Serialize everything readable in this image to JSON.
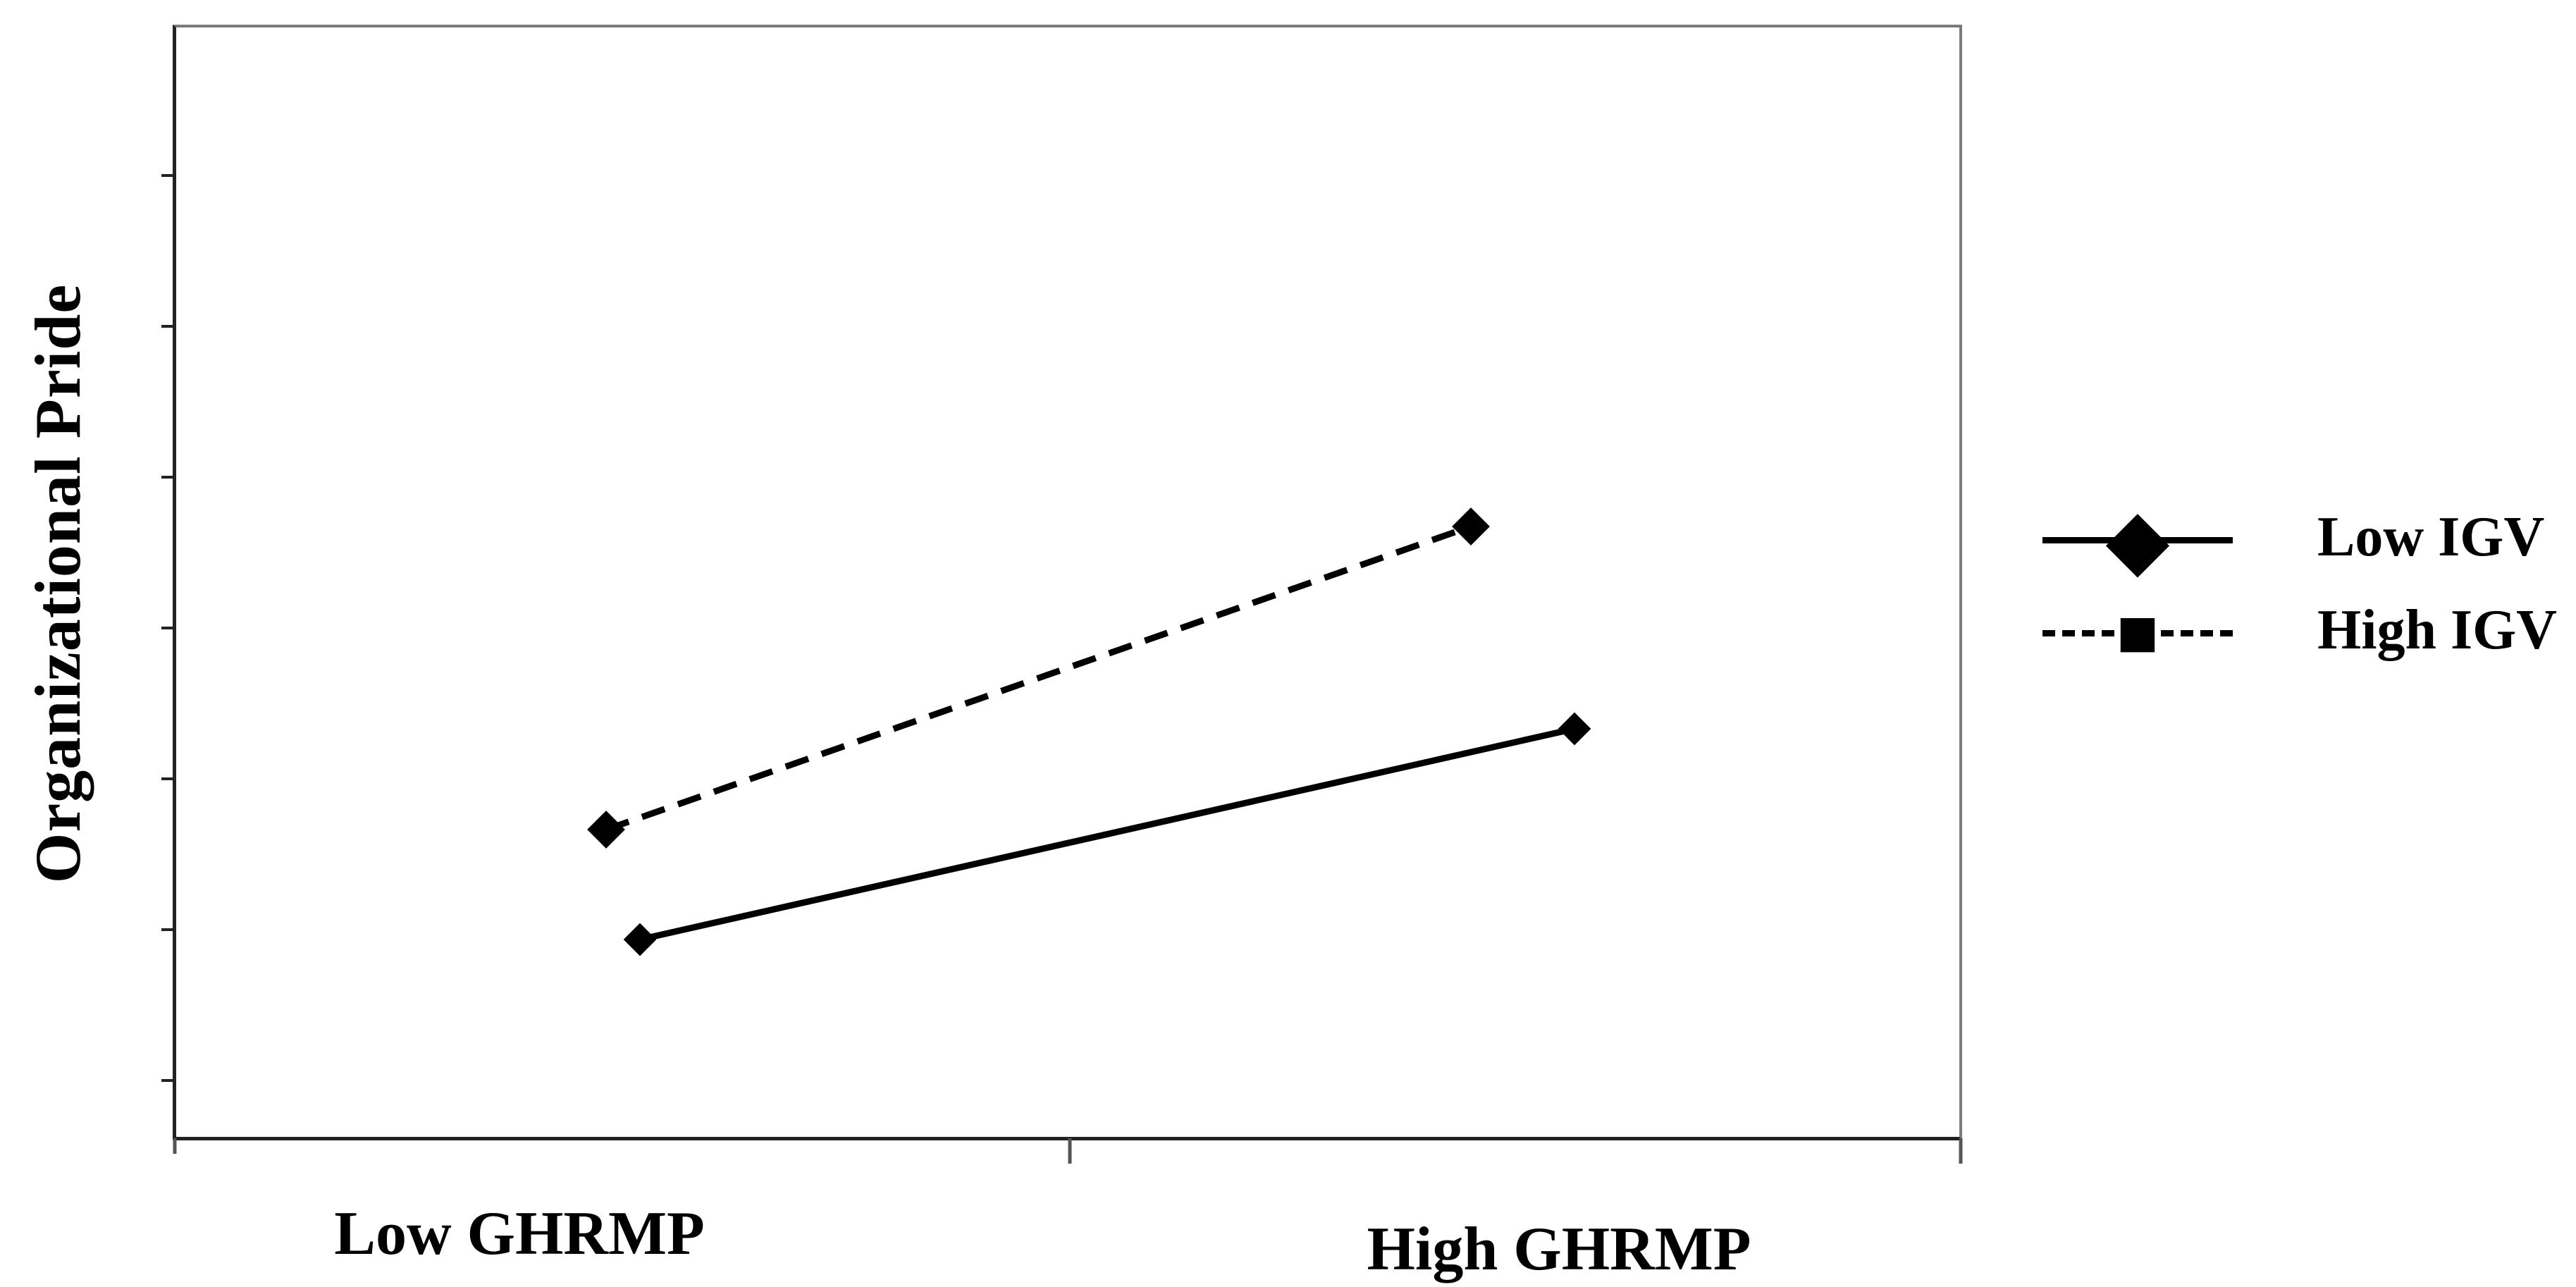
{
  "figure": {
    "kind": "static-interaction-plot",
    "background": "#ffffff",
    "frame_border_color": "#7b7b7b",
    "axis_color": "#222222",
    "line_color": "#000000",
    "text_color": "#000000"
  },
  "icons": {
    "diamond_marker": "◆",
    "square_marker": "■"
  },
  "chart_data": {
    "type": "line",
    "title": "",
    "xlabel": "",
    "ylabel": "Organizational Pride",
    "categories": [
      "Low GHRMP",
      "High GHRMP"
    ],
    "y_axis": {
      "tick_labels_visible": false,
      "unlabeled_minor_tick_count": 7,
      "range_norm": [
        0,
        1
      ]
    },
    "x_axis": {
      "tick_positions": [
        "left-corner",
        "midpoint",
        "right-corner"
      ]
    },
    "legend_position": "right-outside",
    "series": [
      {
        "name": "Low IGV",
        "line_style": "solid",
        "marker_plot": "diamond",
        "marker_legend": "diamond",
        "color": "#000000",
        "categories": [
          "Low GHRMP",
          "High GHRMP"
        ],
        "values_norm_from_bottom": [
          0.18,
          0.37
        ],
        "points": [
          {
            "x_frac": 0.26,
            "y_frac_from_bottom": 0.178
          },
          {
            "x_frac": 0.784,
            "y_frac_from_bottom": 0.368
          }
        ]
      },
      {
        "name": "High IGV",
        "line_style": "dashed",
        "marker_plot": "diamond",
        "marker_legend": "square",
        "color": "#000000",
        "categories": [
          "Low GHRMP",
          "High GHRMP"
        ],
        "values_norm_from_bottom": [
          0.28,
          0.55
        ],
        "points": [
          {
            "x_frac": 0.241,
            "y_frac_from_bottom": 0.277
          },
          {
            "x_frac": 0.726,
            "y_frac_from_bottom": 0.55
          }
        ]
      }
    ]
  }
}
